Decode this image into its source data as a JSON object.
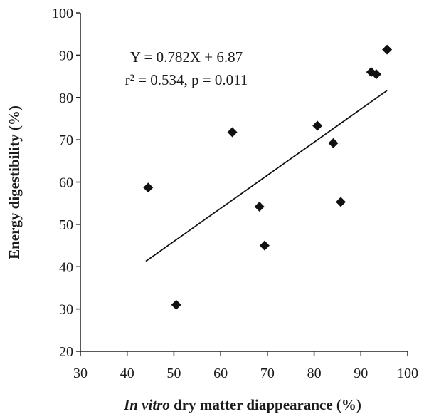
{
  "chart_data": {
    "type": "scatter",
    "title": "",
    "xlabel_italic": "In vitro",
    "xlabel_rest": " dry matter diappearance (%)",
    "ylabel": "Energy digestibility (%)",
    "xlim": [
      30,
      100
    ],
    "ylim": [
      20,
      100
    ],
    "xticks": [
      "30",
      "40",
      "50",
      "60",
      "70",
      "80",
      "90",
      "100"
    ],
    "yticks": [
      "20",
      "30",
      "40",
      "50",
      "60",
      "70",
      "80",
      "90",
      "100"
    ],
    "grid": false,
    "legend": "none",
    "marker": "diamond",
    "marker_color": "#111111",
    "line_color": "#111111",
    "points": [
      {
        "x": 44.5,
        "y": 58.7
      },
      {
        "x": 50.5,
        "y": 31.0
      },
      {
        "x": 62.5,
        "y": 71.8
      },
      {
        "x": 68.3,
        "y": 54.2
      },
      {
        "x": 69.4,
        "y": 45.0
      },
      {
        "x": 80.7,
        "y": 73.3
      },
      {
        "x": 84.1,
        "y": 69.2
      },
      {
        "x": 85.7,
        "y": 55.3
      },
      {
        "x": 92.2,
        "y": 86.0
      },
      {
        "x": 93.3,
        "y": 85.5
      },
      {
        "x": 95.6,
        "y": 91.3
      }
    ],
    "regression": {
      "slope": 0.782,
      "intercept": 6.87,
      "x_range": [
        44.0,
        95.6
      ],
      "equation": "Y = 0.782X + 6.87",
      "stats": "r² = 0.534, p = 0.011"
    }
  }
}
